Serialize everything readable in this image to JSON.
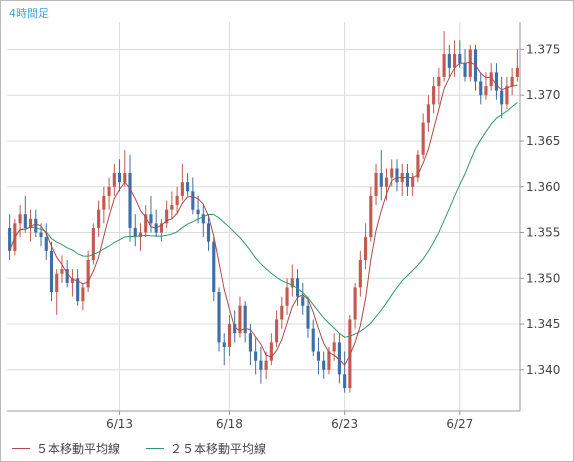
{
  "timeframe": "4時間足",
  "colors": {
    "up": "#c25a4f",
    "down": "#3d6fa6",
    "ma5": "#b2484a",
    "ma25": "#2e9a6c",
    "grid": "#dcdcdc",
    "axis": "#9a9a9a",
    "text": "#444444"
  },
  "chart_data": {
    "type": "candlestick",
    "y_ticks": [
      "1.340",
      "1.345",
      "1.350",
      "1.355",
      "1.360",
      "1.365",
      "1.370",
      "1.375"
    ],
    "ylim": [
      1.3355,
      1.378
    ],
    "x_ticks": [
      {
        "label": "6/13",
        "index": 21
      },
      {
        "label": "6/18",
        "index": 42
      },
      {
        "label": "6/23",
        "index": 64
      },
      {
        "label": "6/27",
        "index": 86
      }
    ],
    "legend": [
      {
        "name": "５本移動平均線",
        "color": "#b2484a"
      },
      {
        "name": "２５本移動平均線",
        "color": "#2e9a6c"
      }
    ],
    "candles": [
      [
        1.3555,
        1.357,
        1.352,
        1.353
      ],
      [
        1.353,
        1.3565,
        1.3525,
        1.356
      ],
      [
        1.356,
        1.358,
        1.3545,
        1.357
      ],
      [
        1.357,
        1.359,
        1.355,
        1.3555
      ],
      [
        1.3555,
        1.3575,
        1.354,
        1.3565
      ],
      [
        1.3565,
        1.3575,
        1.3545,
        1.355
      ],
      [
        1.355,
        1.356,
        1.3535,
        1.3545
      ],
      [
        1.3545,
        1.356,
        1.352,
        1.353
      ],
      [
        1.353,
        1.354,
        1.3475,
        1.3485
      ],
      [
        1.3485,
        1.351,
        1.346,
        1.3505
      ],
      [
        1.3505,
        1.3525,
        1.3495,
        1.351
      ],
      [
        1.351,
        1.352,
        1.349,
        1.3495
      ],
      [
        1.3495,
        1.351,
        1.348,
        1.35
      ],
      [
        1.35,
        1.351,
        1.347,
        1.3475
      ],
      [
        1.3475,
        1.3495,
        1.3465,
        1.349
      ],
      [
        1.349,
        1.353,
        1.3485,
        1.352
      ],
      [
        1.352,
        1.356,
        1.3515,
        1.3555
      ],
      [
        1.3555,
        1.3585,
        1.3545,
        1.3575
      ],
      [
        1.3575,
        1.36,
        1.356,
        1.359
      ],
      [
        1.359,
        1.361,
        1.3575,
        1.36
      ],
      [
        1.36,
        1.3625,
        1.359,
        1.3615
      ],
      [
        1.3615,
        1.363,
        1.3595,
        1.3605
      ],
      [
        1.3605,
        1.364,
        1.36,
        1.3615
      ],
      [
        1.3615,
        1.3635,
        1.354,
        1.3555
      ],
      [
        1.3555,
        1.357,
        1.3535,
        1.3545
      ],
      [
        1.3545,
        1.356,
        1.353,
        1.355
      ],
      [
        1.355,
        1.358,
        1.3545,
        1.357
      ],
      [
        1.357,
        1.359,
        1.355,
        1.356
      ],
      [
        1.356,
        1.3575,
        1.3545,
        1.355
      ],
      [
        1.355,
        1.3565,
        1.354,
        1.356
      ],
      [
        1.356,
        1.3585,
        1.3555,
        1.3575
      ],
      [
        1.3575,
        1.3595,
        1.3565,
        1.358
      ],
      [
        1.358,
        1.36,
        1.357,
        1.359
      ],
      [
        1.359,
        1.3625,
        1.3585,
        1.3605
      ],
      [
        1.3605,
        1.3615,
        1.359,
        1.3595
      ],
      [
        1.3595,
        1.361,
        1.357,
        1.3575
      ],
      [
        1.3575,
        1.359,
        1.356,
        1.357
      ],
      [
        1.357,
        1.358,
        1.3545,
        1.356
      ],
      [
        1.356,
        1.357,
        1.353,
        1.354
      ],
      [
        1.354,
        1.3545,
        1.3475,
        1.3485
      ],
      [
        1.3485,
        1.349,
        1.342,
        1.343
      ],
      [
        1.343,
        1.344,
        1.3405,
        1.3425
      ],
      [
        1.3425,
        1.346,
        1.3415,
        1.345
      ],
      [
        1.345,
        1.3465,
        1.343,
        1.344
      ],
      [
        1.344,
        1.348,
        1.3435,
        1.347
      ],
      [
        1.347,
        1.3475,
        1.343,
        1.344
      ],
      [
        1.344,
        1.345,
        1.3405,
        1.342
      ],
      [
        1.342,
        1.3435,
        1.3395,
        1.341
      ],
      [
        1.341,
        1.3425,
        1.3385,
        1.34
      ],
      [
        1.34,
        1.342,
        1.339,
        1.341
      ],
      [
        1.341,
        1.344,
        1.3405,
        1.343
      ],
      [
        1.343,
        1.3465,
        1.3425,
        1.3455
      ],
      [
        1.3455,
        1.348,
        1.3445,
        1.347
      ],
      [
        1.347,
        1.35,
        1.346,
        1.349
      ],
      [
        1.349,
        1.3515,
        1.348,
        1.35
      ],
      [
        1.35,
        1.351,
        1.347,
        1.348
      ],
      [
        1.348,
        1.3495,
        1.346,
        1.347
      ],
      [
        1.347,
        1.348,
        1.3435,
        1.3445
      ],
      [
        1.3445,
        1.3455,
        1.3415,
        1.342
      ],
      [
        1.342,
        1.3435,
        1.3395,
        1.341
      ],
      [
        1.341,
        1.342,
        1.339,
        1.34
      ],
      [
        1.34,
        1.3425,
        1.3395,
        1.342
      ],
      [
        1.342,
        1.344,
        1.341,
        1.343
      ],
      [
        1.343,
        1.344,
        1.3385,
        1.3395
      ],
      [
        1.3395,
        1.342,
        1.3375,
        1.338
      ],
      [
        1.338,
        1.346,
        1.3375,
        1.3455
      ],
      [
        1.3455,
        1.3495,
        1.3445,
        1.349
      ],
      [
        1.349,
        1.353,
        1.348,
        1.352
      ],
      [
        1.352,
        1.356,
        1.351,
        1.3545
      ],
      [
        1.3545,
        1.36,
        1.354,
        1.359
      ],
      [
        1.359,
        1.3625,
        1.358,
        1.3615
      ],
      [
        1.3615,
        1.364,
        1.3585,
        1.36
      ],
      [
        1.36,
        1.362,
        1.3585,
        1.361
      ],
      [
        1.361,
        1.363,
        1.36,
        1.362
      ],
      [
        1.362,
        1.363,
        1.3595,
        1.3605
      ],
      [
        1.3605,
        1.3625,
        1.359,
        1.3615
      ],
      [
        1.3615,
        1.3625,
        1.359,
        1.36
      ],
      [
        1.36,
        1.3615,
        1.359,
        1.361
      ],
      [
        1.361,
        1.364,
        1.3605,
        1.3635
      ],
      [
        1.3635,
        1.368,
        1.363,
        1.367
      ],
      [
        1.367,
        1.37,
        1.366,
        1.369
      ],
      [
        1.369,
        1.372,
        1.368,
        1.371
      ],
      [
        1.371,
        1.373,
        1.369,
        1.372
      ],
      [
        1.372,
        1.377,
        1.3715,
        1.3745
      ],
      [
        1.3745,
        1.3755,
        1.372,
        1.373
      ],
      [
        1.373,
        1.376,
        1.372,
        1.3745
      ],
      [
        1.3745,
        1.376,
        1.373,
        1.3735
      ],
      [
        1.3735,
        1.375,
        1.3715,
        1.372
      ],
      [
        1.372,
        1.3755,
        1.3715,
        1.375
      ],
      [
        1.375,
        1.3755,
        1.3705,
        1.3715
      ],
      [
        1.3715,
        1.3725,
        1.369,
        1.37
      ],
      [
        1.37,
        1.3725,
        1.3695,
        1.371
      ],
      [
        1.371,
        1.3735,
        1.3705,
        1.3725
      ],
      [
        1.3725,
        1.3735,
        1.3695,
        1.3705
      ],
      [
        1.3705,
        1.372,
        1.3675,
        1.369
      ],
      [
        1.369,
        1.372,
        1.3685,
        1.371
      ],
      [
        1.371,
        1.373,
        1.37,
        1.372
      ],
      [
        1.372,
        1.375,
        1.3715,
        1.373
      ]
    ]
  }
}
